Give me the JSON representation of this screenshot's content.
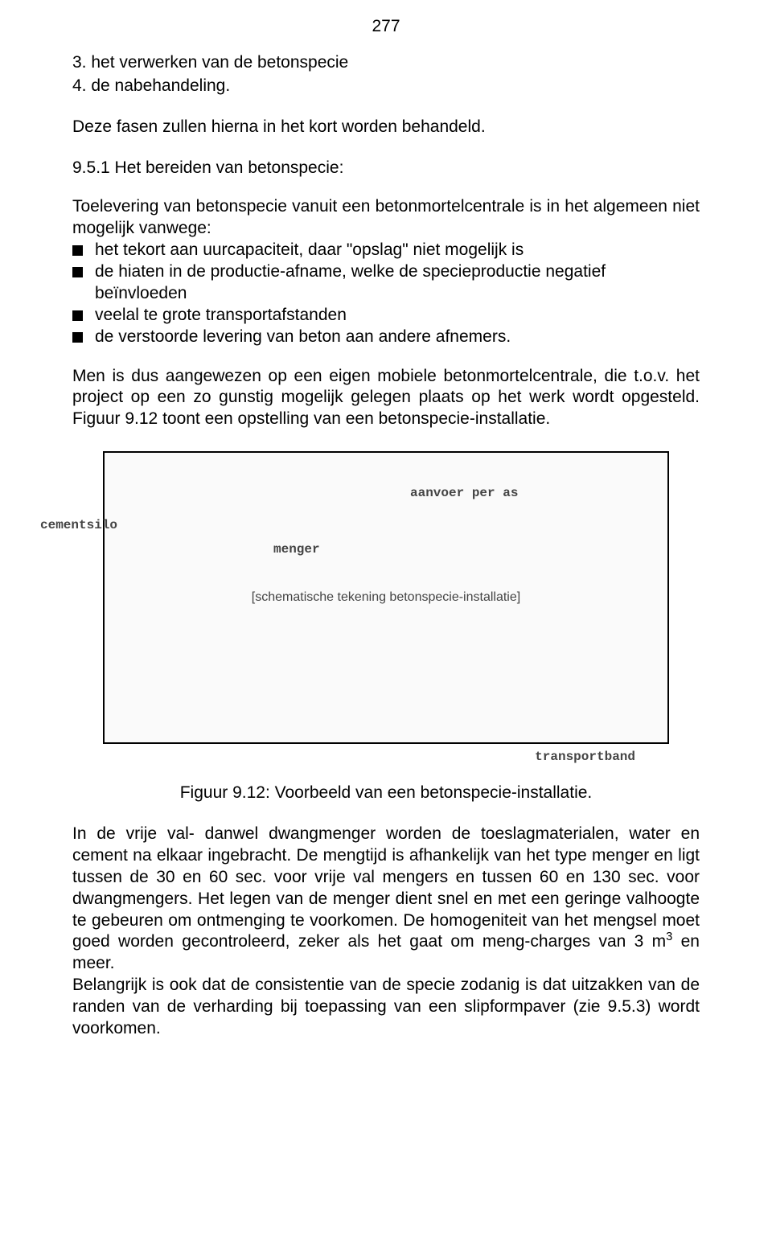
{
  "page_number": "277",
  "intro_list": {
    "item3": "3. het verwerken van de betonspecie",
    "item4": "4. de nabehandeling."
  },
  "intro_sentence": "Deze fasen zullen hierna in het kort worden behandeld.",
  "section": {
    "heading": "9.5.1 Het bereiden van betonspecie:",
    "lead": "Toelevering van betonspecie vanuit een betonmortelcentrale is in het algemeen niet mogelijk vanwege:",
    "bullets": [
      "het tekort aan uurcapaciteit, daar \"opslag\" niet mogelijk is",
      "de hiaten in de productie-afname, welke de specieproductie negatief beïnvloeden",
      "veelal te grote transportafstanden",
      "de verstoorde levering van beton aan andere afnemers."
    ],
    "para_after_bullets": "Men is dus aangewezen op een eigen mobiele betonmortelcentrale, die t.o.v. het project op een zo gunstig mogelijk gelegen plaats op het werk wordt opgesteld. Figuur 9.12 toont een opstelling van een betonspecie-installatie."
  },
  "figure": {
    "placeholder_text": "[schematische tekening betonspecie-installatie]",
    "labels": {
      "cementsilo": "cementsilo",
      "menger": "menger",
      "aanvoer": "aanvoer per as",
      "transportband": "transportband"
    },
    "caption": "Figuur 9.12: Voorbeeld van een betonspecie-installatie."
  },
  "closing": {
    "p1_before_sup": "In de vrije val- danwel dwangmenger worden de toeslagmaterialen, water en cement na elkaar ingebracht. De mengtijd is afhankelijk van het type menger en ligt tussen de 30 en 60 sec. voor vrije val mengers en tussen 60 en 130 sec. voor dwangmengers. Het legen van de menger dient snel en met een geringe valhoogte te gebeuren om ontmenging te voorkomen. De homogeniteit van het mengsel moet goed worden gecontroleerd, zeker als het gaat om meng-charges van 3 m",
    "p1_sup": "3",
    "p1_after_sup": " en meer.",
    "p2": "Belangrijk is ook dat de consistentie van de specie zodanig is dat uitzakken van de randen van de verharding bij toepassing van een slipformpaver (zie 9.5.3) wordt voorkomen."
  }
}
